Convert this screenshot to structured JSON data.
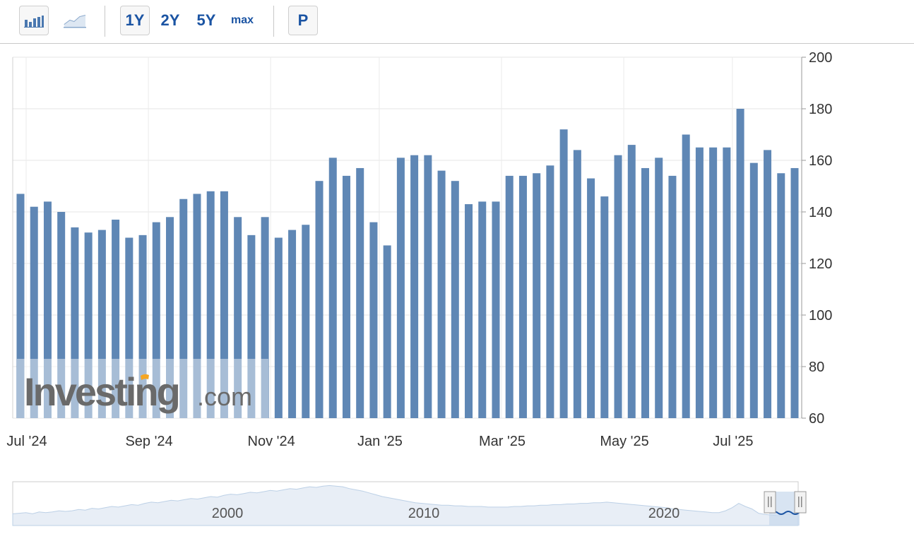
{
  "toolbar": {
    "icons": {
      "bar": "bar-chart-icon",
      "line": "line-chart-icon"
    },
    "ranges": [
      "1Y",
      "2Y",
      "5Y",
      "max"
    ],
    "print_label": "P",
    "accent": "#1b54a3"
  },
  "watermark": {
    "brand": "Investing",
    "suffix": ".com"
  },
  "chart_data": {
    "type": "bar",
    "color": "#5f87b5",
    "title": "",
    "xlabel": "",
    "ylabel": "",
    "ylim": [
      60,
      200
    ],
    "yticks": [
      60,
      80,
      100,
      120,
      140,
      160,
      180,
      200
    ],
    "xticks": [
      {
        "label": "Jul '24",
        "index": 0
      },
      {
        "label": "Sep '24",
        "index": 9
      },
      {
        "label": "Nov '24",
        "index": 18
      },
      {
        "label": "Jan '25",
        "index": 26
      },
      {
        "label": "Mar '25",
        "index": 35
      },
      {
        "label": "May '25",
        "index": 44
      },
      {
        "label": "Jul '25",
        "index": 52
      }
    ],
    "values": [
      147,
      142,
      144,
      140,
      134,
      132,
      133,
      137,
      130,
      131,
      136,
      138,
      145,
      147,
      148,
      148,
      138,
      131,
      138,
      130,
      133,
      135,
      152,
      161,
      154,
      157,
      136,
      127,
      161,
      162,
      162,
      156,
      152,
      143,
      144,
      144,
      154,
      154,
      155,
      158,
      172,
      164,
      153,
      146,
      162,
      166,
      157,
      161,
      154,
      170,
      165,
      165,
      165,
      180,
      159,
      164,
      155,
      157
    ],
    "grid": true,
    "legend": "none"
  },
  "navigator": {
    "labels": [
      "2000",
      "2010",
      "2020"
    ],
    "series": [
      119,
      120,
      121,
      119,
      122,
      121,
      122,
      124,
      123,
      124,
      126,
      125,
      128,
      127,
      129,
      131,
      130,
      132,
      134,
      133,
      136,
      138,
      137,
      139,
      141,
      140,
      142,
      144,
      143,
      145,
      147,
      146,
      149,
      151,
      150,
      152,
      154,
      153,
      155,
      157,
      156,
      158,
      160,
      159,
      161,
      163,
      162,
      164,
      165,
      164,
      163,
      160,
      158,
      156,
      153,
      150,
      147,
      145,
      143,
      141,
      139,
      137,
      136,
      135,
      134,
      133,
      133,
      132,
      132,
      131,
      131,
      131,
      130,
      130,
      130,
      130,
      131,
      131,
      132,
      132,
      133,
      133,
      134,
      134,
      135,
      135,
      136,
      136,
      137,
      137,
      138,
      137,
      136,
      135,
      134,
      133,
      132,
      131,
      130,
      129,
      127,
      126,
      125,
      124,
      123,
      122,
      121,
      121,
      124,
      129,
      136,
      131,
      127,
      120,
      118,
      117,
      116,
      119,
      118,
      120
    ]
  }
}
